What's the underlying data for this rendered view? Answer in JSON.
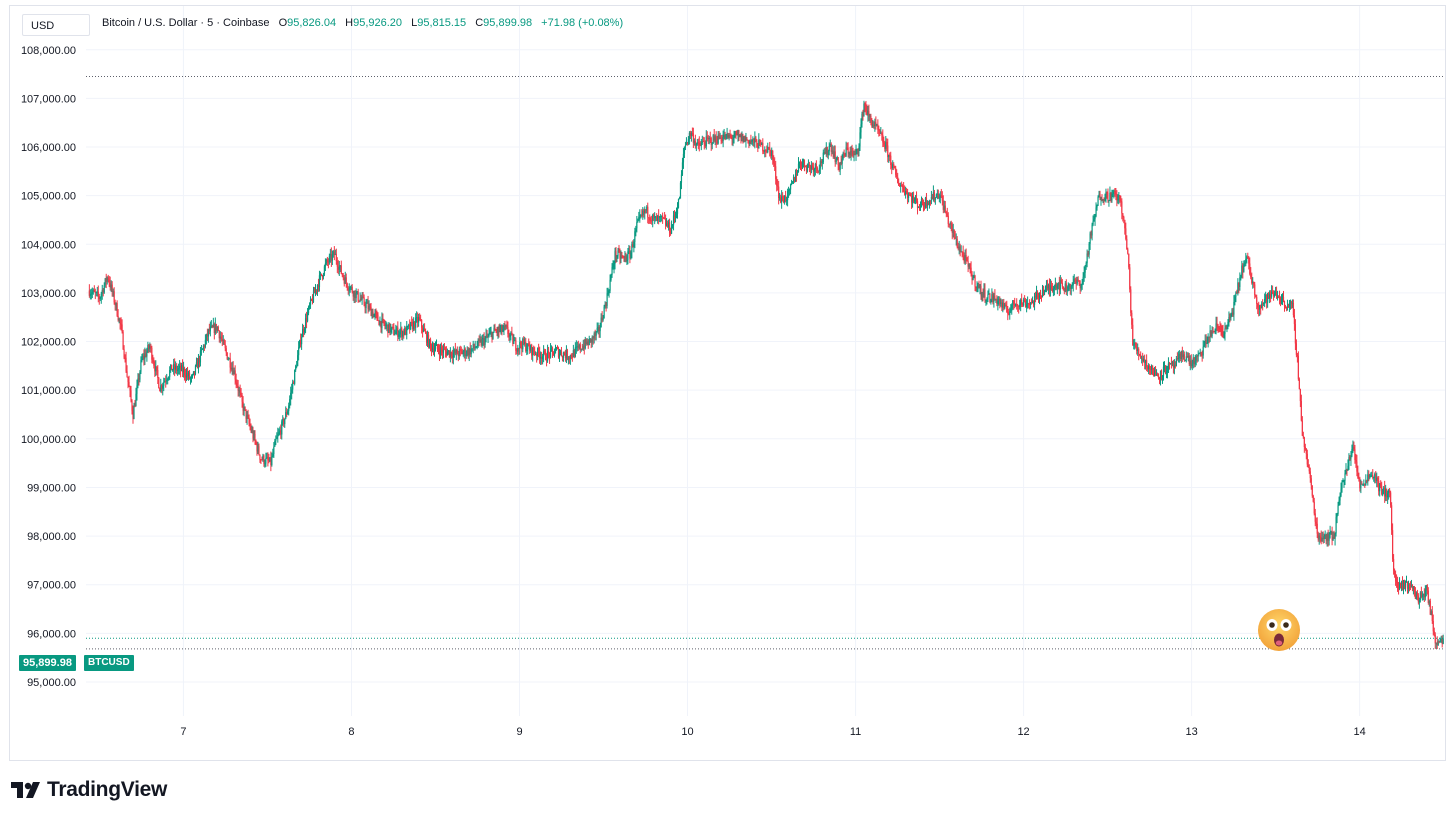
{
  "header": {
    "currency": "USD",
    "symbol_description": "Bitcoin / U.S. Dollar · 5 · Coinbase",
    "ohlc": {
      "o_label": "O",
      "o_value": "95,826.04",
      "h_label": "H",
      "h_value": "95,926.20",
      "l_label": "L",
      "l_value": "95,815.15",
      "c_label": "C",
      "c_value": "95,899.98",
      "change": "+71.98 (+0.08%)"
    }
  },
  "last_price": {
    "value_label": "95,899.98",
    "symbol": "BTCUSD"
  },
  "brand": {
    "name": "TradingView",
    "icon": "tradingview-logo-icon"
  },
  "emoji": "astonished-face-icon",
  "colors": {
    "up": "#089981",
    "down": "#f23645",
    "grid": "#f0f3fa",
    "text": "#131722"
  },
  "chart_data": {
    "type": "line",
    "chart_style": "candlestick",
    "timeframe": "5",
    "title": "Bitcoin / U.S. Dollar · 5 · Coinbase",
    "y_ticks": [
      95000,
      96000,
      97000,
      98000,
      99000,
      100000,
      101000,
      102000,
      103000,
      104000,
      105000,
      106000,
      107000,
      108000
    ],
    "y_tick_labels": [
      "95,000.00",
      "96,000.00",
      "97,000.00",
      "98,000.00",
      "99,000.00",
      "100,000.00",
      "101,000.00",
      "102,000.00",
      "103,000.00",
      "104,000.00",
      "105,000.00",
      "106,000.00",
      "107,000.00",
      "108,000.00"
    ],
    "ylim": [
      94300,
      108900
    ],
    "x_ticks": [
      7,
      8,
      9,
      10,
      11,
      12,
      13,
      14
    ],
    "x_tick_labels": [
      "7",
      "8",
      "9",
      "10",
      "11",
      "12",
      "13",
      "14"
    ],
    "xlim": [
      6.42,
      14.52
    ],
    "grid": true,
    "high_line": 107450,
    "low_line": 95680,
    "last_price": 95899.98,
    "series": [
      {
        "x": [
          6.44,
          6.5,
          6.55,
          6.6,
          6.63,
          6.66,
          6.7,
          6.75,
          6.8,
          6.86,
          6.93,
          7.0,
          7.05,
          7.1,
          7.15,
          7.2,
          7.25,
          7.3,
          7.35,
          7.4,
          7.46,
          7.52,
          7.55,
          7.58,
          7.62,
          7.66,
          7.7,
          7.75,
          7.8,
          7.85,
          7.9,
          7.93,
          7.97,
          8.03,
          8.1,
          8.17,
          8.25,
          8.32,
          8.4,
          8.47,
          8.55,
          8.62,
          8.7,
          8.78,
          8.85,
          8.92,
          8.98,
          9.02,
          9.08,
          9.15,
          9.22,
          9.3,
          9.37,
          9.42,
          9.47,
          9.52,
          9.57,
          9.62,
          9.66,
          9.7,
          9.75,
          9.8,
          9.85,
          9.9,
          9.95,
          9.98,
          10.02,
          10.06,
          10.1,
          10.2,
          10.3,
          10.4,
          10.5,
          10.55,
          10.6,
          10.63,
          10.67,
          10.72,
          10.78,
          10.85,
          10.9,
          10.95,
          11.0,
          11.02,
          11.05,
          11.08,
          11.12,
          11.18,
          11.25,
          11.32,
          11.38,
          11.45,
          11.5,
          11.55,
          11.6,
          11.65,
          11.7,
          11.75,
          11.8,
          11.85,
          11.9,
          11.95,
          12.0,
          12.05,
          12.1,
          12.15,
          12.2,
          12.25,
          12.3,
          12.35,
          12.4,
          12.45,
          12.5,
          12.55,
          12.58,
          12.62,
          12.65,
          12.7,
          12.75,
          12.8,
          12.85,
          12.9,
          12.95,
          13.0,
          13.05,
          13.1,
          13.15,
          13.2,
          13.25,
          13.3,
          13.33,
          13.37,
          13.4,
          13.45,
          13.5,
          13.55,
          13.6,
          13.63,
          13.66,
          13.7,
          13.75,
          13.8,
          13.85,
          13.88,
          13.92,
          13.96,
          14.0,
          14.04,
          14.08,
          14.13,
          14.18,
          14.2,
          14.23,
          14.27,
          14.3,
          14.35,
          14.4,
          14.45,
          14.5
        ],
        "y": [
          103050,
          102900,
          103350,
          102700,
          102250,
          101400,
          100500,
          101600,
          101900,
          101050,
          101450,
          101400,
          101200,
          101700,
          102200,
          102300,
          101800,
          101400,
          100700,
          100200,
          99600,
          99500,
          99950,
          100200,
          100600,
          101300,
          102100,
          102700,
          103200,
          103600,
          103800,
          103500,
          103200,
          102950,
          102700,
          102400,
          102200,
          102200,
          102450,
          101900,
          101800,
          101750,
          101800,
          102000,
          102200,
          102250,
          101900,
          101950,
          101800,
          101700,
          101800,
          101700,
          101900,
          102000,
          102200,
          102900,
          103800,
          103700,
          103800,
          104400,
          104700,
          104500,
          104500,
          104300,
          104900,
          106000,
          106300,
          106000,
          106100,
          106200,
          106200,
          106100,
          105900,
          104900,
          105000,
          105300,
          105700,
          105600,
          105600,
          106050,
          105600,
          105950,
          105800,
          106100,
          106900,
          106600,
          106400,
          106000,
          105300,
          105000,
          104800,
          104950,
          105050,
          104500,
          104050,
          103700,
          103300,
          103000,
          102900,
          102850,
          102600,
          102800,
          102800,
          102800,
          103000,
          103100,
          103200,
          103100,
          103200,
          103200,
          104200,
          105000,
          105000,
          105000,
          104850,
          103800,
          101950,
          101700,
          101450,
          101300,
          101450,
          101500,
          101750,
          101550,
          101700,
          102100,
          102300,
          102200,
          102700,
          103500,
          103700,
          103100,
          102700,
          102900,
          103000,
          102800,
          102700,
          101600,
          100100,
          99300,
          98000,
          98000,
          98000,
          98900,
          99300,
          99900,
          99000,
          99200,
          99300,
          98900,
          98900,
          97300,
          96900,
          97000,
          97000,
          96700,
          96900,
          95850,
          95900
        ]
      }
    ]
  }
}
